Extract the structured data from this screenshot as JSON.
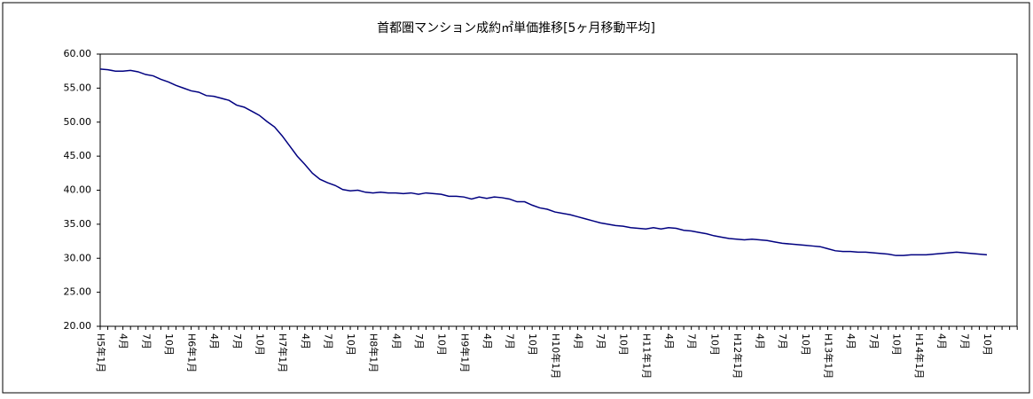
{
  "chart_data": {
    "type": "line",
    "title": "首都圏マンション成約㎡単価推移[5ヶ月移動平均]",
    "categories": [
      "H5年1月",
      null,
      null,
      "4月",
      null,
      null,
      "7月",
      null,
      null,
      "10月",
      null,
      null,
      "H6年1月",
      null,
      null,
      "4月",
      null,
      null,
      "7月",
      null,
      null,
      "10月",
      null,
      null,
      "H7年1月",
      null,
      null,
      "4月",
      null,
      null,
      "7月",
      null,
      null,
      "10月",
      null,
      null,
      "H8年1月",
      null,
      null,
      "4月",
      null,
      null,
      "7月",
      null,
      null,
      "10月",
      null,
      null,
      "H9年1月",
      null,
      null,
      "4月",
      null,
      null,
      "7月",
      null,
      null,
      "10月",
      null,
      null,
      "H10年1月",
      null,
      null,
      "4月",
      null,
      null,
      "7月",
      null,
      null,
      "10月",
      null,
      null,
      "H11年1月",
      null,
      null,
      "4月",
      null,
      null,
      "7月",
      null,
      null,
      "10月",
      null,
      null,
      "H12年1月",
      null,
      null,
      "4月",
      null,
      null,
      "7月",
      null,
      null,
      "10月",
      null,
      null,
      "H13年1月",
      null,
      null,
      "4月",
      null,
      null,
      "7月",
      null,
      null,
      "10月",
      null,
      null,
      "H14年1月",
      null,
      null,
      "4月",
      null,
      null,
      "7月",
      null,
      null,
      "10月"
    ],
    "values": [
      57.8,
      57.7,
      57.5,
      57.5,
      57.6,
      57.4,
      57.0,
      56.8,
      56.3,
      55.9,
      55.4,
      55.0,
      54.6,
      54.4,
      53.9,
      53.8,
      53.5,
      53.2,
      52.5,
      52.2,
      51.6,
      51.0,
      50.1,
      49.3,
      48.0,
      46.5,
      45.0,
      43.8,
      42.5,
      41.6,
      41.1,
      40.7,
      40.1,
      39.9,
      40.0,
      39.7,
      39.6,
      39.7,
      39.6,
      39.6,
      39.5,
      39.6,
      39.4,
      39.6,
      39.5,
      39.4,
      39.1,
      39.1,
      39.0,
      38.7,
      39.0,
      38.8,
      39.0,
      38.9,
      38.7,
      38.3,
      38.3,
      37.8,
      37.4,
      37.2,
      36.8,
      36.6,
      36.4,
      36.1,
      35.8,
      35.5,
      35.2,
      35.0,
      34.8,
      34.7,
      34.5,
      34.4,
      34.3,
      34.5,
      34.3,
      34.5,
      34.4,
      34.1,
      34.0,
      33.8,
      33.6,
      33.3,
      33.1,
      32.9,
      32.8,
      32.7,
      32.8,
      32.7,
      32.6,
      32.4,
      32.2,
      32.1,
      32.0,
      31.9,
      31.8,
      31.7,
      31.4,
      31.1,
      31.0,
      31.0,
      30.9,
      30.9,
      30.8,
      30.7,
      30.6,
      30.4,
      30.4,
      30.5,
      30.5,
      30.5,
      30.6,
      30.7,
      30.8,
      30.9,
      30.8,
      30.7,
      30.6,
      30.5
    ],
    "color": "#000080",
    "ylim": [
      20,
      60
    ],
    "yticks": [
      {
        "value": 20,
        "label": "20.00"
      },
      {
        "value": 25,
        "label": "25.00"
      },
      {
        "value": 30,
        "label": "30.00"
      },
      {
        "value": 35,
        "label": "35.00"
      },
      {
        "value": 40,
        "label": "40.00"
      },
      {
        "value": 45,
        "label": "45.00"
      },
      {
        "value": 50,
        "label": "50.00"
      },
      {
        "value": 55,
        "label": "55.00"
      },
      {
        "value": 60,
        "label": "60.00"
      }
    ]
  }
}
